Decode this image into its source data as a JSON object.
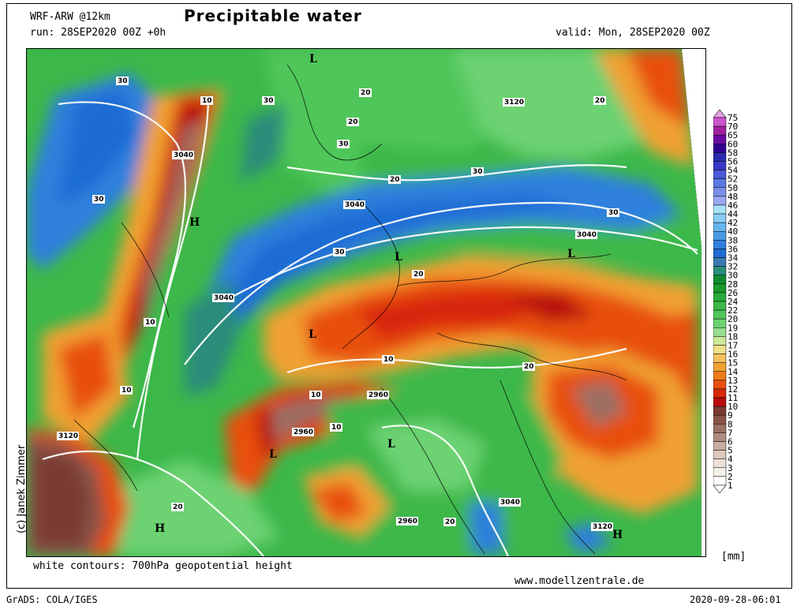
{
  "header": {
    "model": "WRF-ARW @12km",
    "title": "Precipitable water",
    "run": "run: 28SEP2020 00Z +0h",
    "valid": "valid: Mon, 28SEP2020 00Z"
  },
  "footer": {
    "contours_note": "white contours: 700hPa geopotential height",
    "website": "www.modellzentrale.de",
    "software": "GrADS: COLA/IGES",
    "timestamp": "2020-09-28-06:01",
    "unit": "[mm]",
    "author": "(c) Janek Zimmer"
  },
  "legend": {
    "levels": [
      "75",
      "70",
      "65",
      "60",
      "58",
      "56",
      "54",
      "52",
      "50",
      "48",
      "46",
      "44",
      "42",
      "40",
      "38",
      "36",
      "34",
      "32",
      "30",
      "28",
      "26",
      "24",
      "22",
      "20",
      "19",
      "18",
      "17",
      "16",
      "15",
      "14",
      "13",
      "12",
      "11",
      "10",
      "9",
      "8",
      "7",
      "6",
      "5",
      "4",
      "3",
      "2",
      "1"
    ],
    "colors": [
      "#e8a0e8",
      "#cc55cc",
      "#a020a0",
      "#6a0aa0",
      "#300090",
      "#2a2ab0",
      "#3838c8",
      "#4a5ad8",
      "#5a78e0",
      "#7a8ee8",
      "#9aa8f0",
      "#a8e0f8",
      "#88ccf4",
      "#66b4ee",
      "#4a9ce6",
      "#2f80dc",
      "#1f6cd4",
      "#3a7ab0",
      "#2a8c7a",
      "#108a30",
      "#1a9a2a",
      "#2aaa3a",
      "#3cb84a",
      "#50c65a",
      "#6cd272",
      "#9ade92",
      "#cce89a",
      "#f0e08a",
      "#f4c060",
      "#f0a030",
      "#f07a18",
      "#e85010",
      "#d82808",
      "#b80a0a",
      "#7a3a30",
      "#8a5448",
      "#9c7064",
      "#b08c80",
      "#c8aca0",
      "#dcc8bc",
      "#ece0d6",
      "#f6f0ea",
      "#ffffff"
    ]
  },
  "map": {
    "contour_labels": [
      "3040",
      "3040",
      "3040",
      "3040",
      "3120",
      "3120",
      "3120",
      "2960",
      "2960",
      "2960",
      "3040",
      "30",
      "30",
      "30",
      "30",
      "30",
      "30",
      "30",
      "20",
      "20",
      "20",
      "20",
      "20",
      "20",
      "20",
      "20",
      "10",
      "10",
      "10",
      "10",
      "10",
      "10"
    ],
    "pressure_centers": [
      "L",
      "H",
      "L",
      "L",
      "L",
      "L",
      "L",
      "H",
      "H"
    ]
  }
}
